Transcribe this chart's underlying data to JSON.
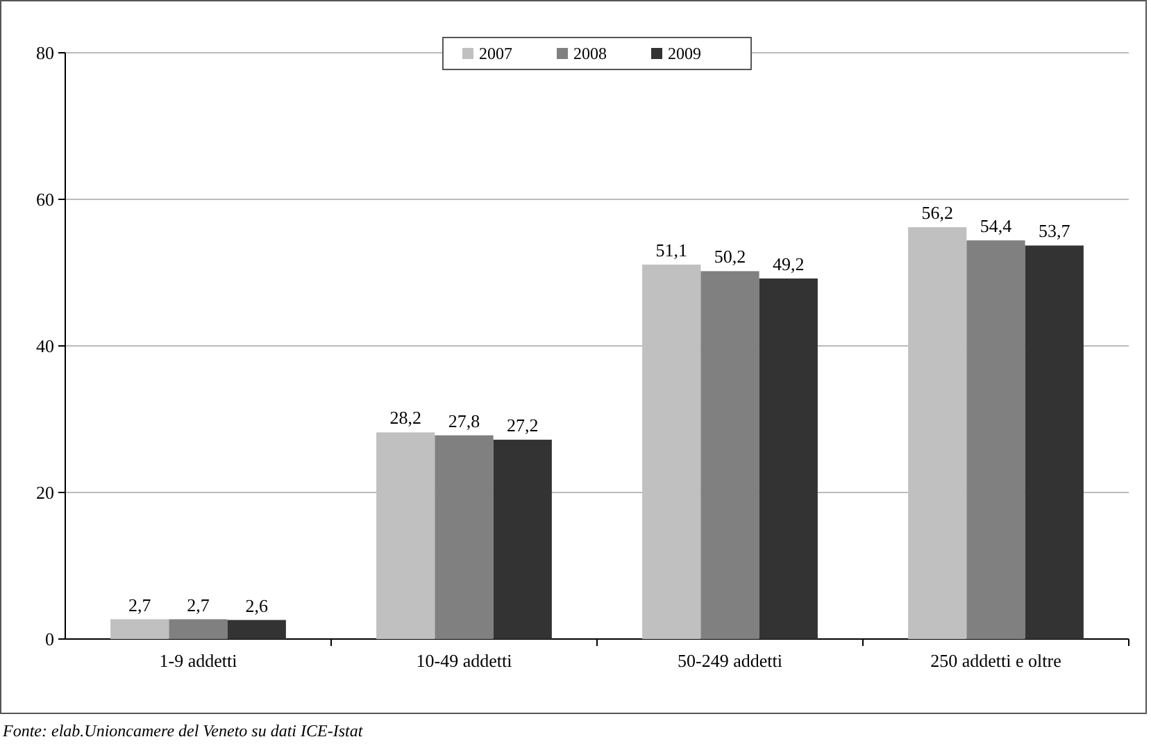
{
  "chart_data": {
    "type": "bar",
    "categories": [
      "1-9 addetti",
      "10-49 addetti",
      "50-249 addetti",
      "250 addetti e oltre"
    ],
    "series": [
      {
        "name": "2007",
        "color": "#c0c0c0",
        "values": [
          2.7,
          28.2,
          51.1,
          56.2
        ],
        "value_labels": [
          "2,7",
          "28,2",
          "51,1",
          "56,2"
        ]
      },
      {
        "name": "2008",
        "color": "#808080",
        "values": [
          2.7,
          27.8,
          50.2,
          54.4
        ],
        "value_labels": [
          "2,7",
          "27,8",
          "50,2",
          "54,4"
        ]
      },
      {
        "name": "2009",
        "color": "#333333",
        "values": [
          2.6,
          27.2,
          49.2,
          53.7
        ],
        "value_labels": [
          "2,6",
          "27,2",
          "49,2",
          "53,7"
        ]
      }
    ],
    "ylim": [
      0,
      80
    ],
    "yticks": [
      0,
      20,
      40,
      60,
      80
    ],
    "grid": "y",
    "legend": "top",
    "annotations": [
      "Fonte: elab.Unioncamere del Veneto su dati ICE-Istat"
    ]
  }
}
